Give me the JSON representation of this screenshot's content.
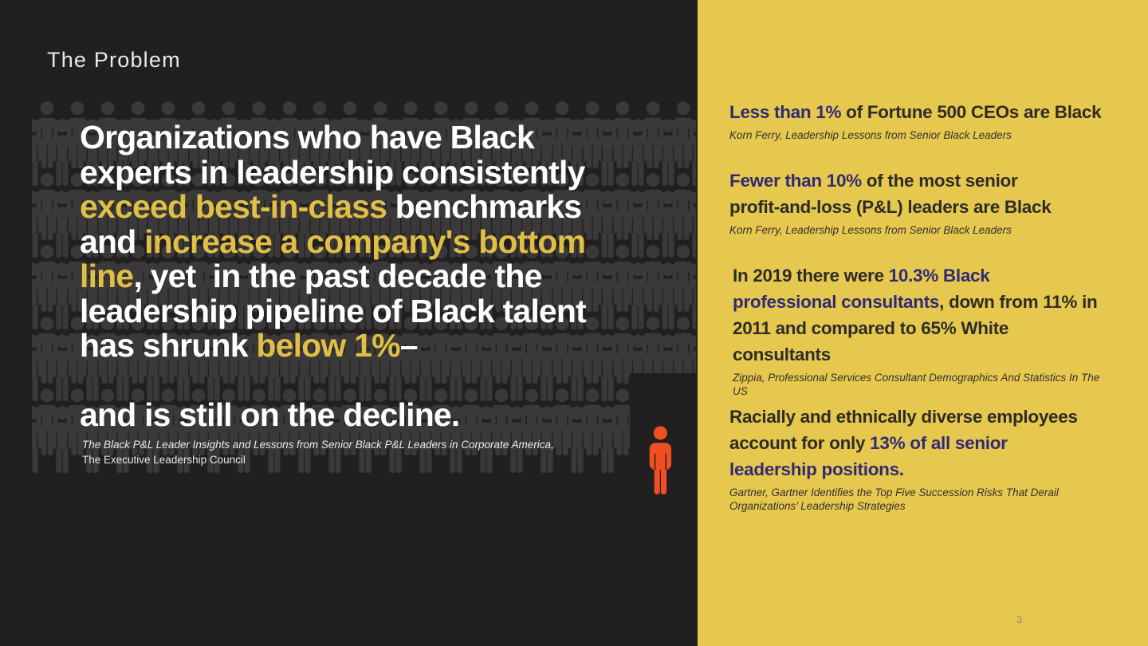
{
  "slide_title": "The Problem",
  "page_number": "3",
  "colors": {
    "background_dark": "#211f20",
    "silhouette_gray": "#3a3838",
    "panel_gold": "#e7c84e",
    "quote_gold_text": "#e0bf47",
    "quote_white_text": "#ffffff",
    "stat_navy": "#2f2b75",
    "stat_ink": "#2e2c29",
    "person_orange": "#f04f23",
    "citation_light": "#eaeaea",
    "page_number_gray": "#8d8c84"
  },
  "quote": {
    "lines": [
      [
        {
          "t": "Organizations who have Black",
          "hl": false
        }
      ],
      [
        {
          "t": "experts in leadership consistently",
          "hl": false
        }
      ],
      [
        {
          "t": "exceed best-in-class",
          "hl": true
        },
        {
          "t": " benchmarks",
          "hl": false
        }
      ],
      [
        {
          "t": "and ",
          "hl": false
        },
        {
          "t": "increase a company's bottom",
          "hl": true
        }
      ],
      [
        {
          "t": "line",
          "hl": true
        },
        {
          "t": ", yet  in the past decade the",
          "hl": false
        }
      ],
      [
        {
          "t": "leadership pipeline of Black talent",
          "hl": false
        }
      ],
      [
        {
          "t": "has shrunk ",
          "hl": false
        },
        {
          "t": "below 1%",
          "hl": true
        },
        {
          "t": "–",
          "hl": false
        }
      ]
    ],
    "closing_line": "and is still on the decline.",
    "citation_lines": [
      "The Black P&L Leader Insights and Lessons from Senior Black P&L Leaders in Corporate America,",
      "The Executive Leadership Council"
    ]
  },
  "stats": [
    {
      "lines": [
        [
          {
            "t": "Less than 1%",
            "hl": true
          },
          {
            "t": " of Fortune 500 CEOs are Black",
            "hl": false
          }
        ]
      ],
      "citation": "Korn Ferry, Leadership Lessons from Senior Black Leaders"
    },
    {
      "lines": [
        [
          {
            "t": "Fewer than 10%",
            "hl": true
          },
          {
            "t": " of the most senior",
            "hl": false
          }
        ],
        [
          {
            "t": "profit-and-loss (P&L) leaders are Black",
            "hl": false
          }
        ]
      ],
      "citation": "Korn Ferry, Leadership Lessons from Senior Black Leaders"
    },
    {
      "lines": [
        [
          {
            "t": "In 2019 there were ",
            "hl": false
          },
          {
            "t": "10.3% Black",
            "hl": true
          }
        ],
        [
          {
            "t": "professional consultants",
            "hl": true
          },
          {
            "t": ", down from 11% in",
            "hl": false
          }
        ],
        [
          {
            "t": "2011 and compared to 65% White",
            "hl": false
          }
        ],
        [
          {
            "t": "consultants",
            "hl": false
          }
        ]
      ],
      "citation": "Zippia, Professional Services Consultant Demographics And Statistics In The US"
    },
    {
      "lines": [
        [
          {
            "t": "Racially and ethnically diverse employees",
            "hl": false
          }
        ],
        [
          {
            "t": "account for only ",
            "hl": false
          },
          {
            "t": "13% of all senior",
            "hl": true
          }
        ],
        [
          {
            "t": "leadership positions.",
            "hl": true
          }
        ]
      ],
      "citation": "Gartner, Gartner Identifies the Top Five Succession Risks That Derail Organizations’ Leadership Strategies"
    }
  ]
}
